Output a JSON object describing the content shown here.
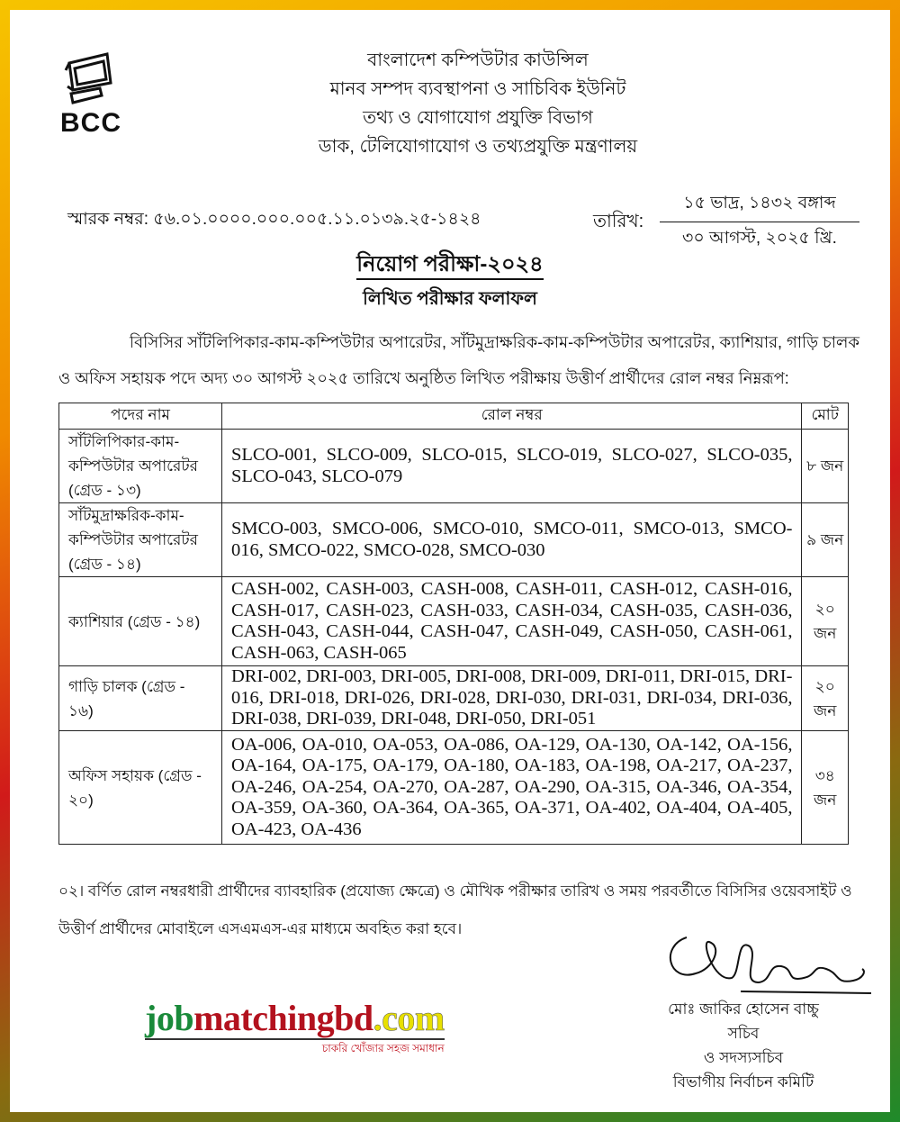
{
  "colors": {
    "frame_top": "#f08a00",
    "frame_bottom": "#1f8a2a",
    "watermark_green": "#1a8a3a",
    "watermark_red": "#b3121e",
    "watermark_yellow": "#e8e000"
  },
  "logo": {
    "text": "BCC",
    "icon": "computer-monitor-icon"
  },
  "header": {
    "lines": [
      "বাংলাদেশ কম্পিউটার কাউন্সিল",
      "মানব সম্পদ ব্যবস্থাপনা ও সাচিবিক ইউনিট",
      "তথ্য ও যোগাযোগ প্রযুক্তি বিভাগ",
      "ডাক, টেলিযোগাযোগ ও তথ্যপ্রযুক্তি মন্ত্রণালয়"
    ]
  },
  "memo": "স্মারক নম্বর: ৫৬.০১.০০০০.০০০.০০৫.১১.০১৩৯.২৫-১৪২৪",
  "date": {
    "label": "তারিখ:",
    "bangla": "১৫ ভাদ্র, ১৪৩২ বঙ্গাব্দ",
    "gregorian": "৩০ আগস্ট, ২০২৫ খ্রি."
  },
  "title": {
    "main": "নিয়োগ পরীক্ষা-২০২৪",
    "sub": "লিখিত পরীক্ষার ফলাফল"
  },
  "intro": {
    "line1": "বিসিসির সাঁটলিপিকার-কাম-কম্পিউটার অপারেটর, সাঁটমুদ্রাক্ষরিক-কাম-কম্পিউটার অপারেটর, ক্যাশিয়ার, গাড়ি চালক",
    "line2": "ও অফিস সহায়ক পদে অদ্য ৩০ আগস্ট ২০২৫ তারিখে অনুষ্ঠিত লিখিত পরীক্ষায় উত্তীর্ণ প্রার্থীদের রোল নম্বর নিম্নরূপ:"
  },
  "table": {
    "headers": [
      "পদের নাম",
      "রোল নম্বর",
      "মোট"
    ],
    "rows": [
      {
        "post": "সাঁটলিপিকার-কাম-কম্পিউটার অপারেটর (গ্রেড - ১৩)",
        "rolls": "SLCO-001, SLCO-009, SLCO-015, SLCO-019, SLCO-027, SLCO-035, SLCO-043, SLCO-079",
        "total": "৮ জন"
      },
      {
        "post": "সাঁটমুদ্রাক্ষরিক-কাম-কম্পিউটার অপারেটর (গ্রেড - ১৪)",
        "rolls": "SMCO-003, SMCO-006, SMCO-010, SMCO-011, SMCO-013, SMCO-016, SMCO-022, SMCO-028, SMCO-030",
        "total": "৯ জন"
      },
      {
        "post": "ক্যাশিয়ার (গ্রেড - ১৪)",
        "rolls": "CASH-002, CASH-003, CASH-008, CASH-011, CASH-012, CASH-016, CASH-017, CASH-023, CASH-033, CASH-034, CASH-035, CASH-036, CASH-043, CASH-044, CASH-047, CASH-049, CASH-050, CASH-061, CASH-063, CASH-065",
        "total": "২০ জন"
      },
      {
        "post": "গাড়ি চালক (গ্রেড - ১৬)",
        "rolls": "DRI-002, DRI-003, DRI-005, DRI-008, DRI-009, DRI-011, DRI-015, DRI-016, DRI-018, DRI-026, DRI-028, DRI-030, DRI-031, DRI-034, DRI-036, DRI-038, DRI-039, DRI-048, DRI-050, DRI-051",
        "total": "২০ জন"
      },
      {
        "post": "অফিস সহায়ক (গ্রেড - ২০)",
        "rolls": "OA-006, OA-010, OA-053, OA-086, OA-129, OA-130, OA-142, OA-156, OA-164, OA-175, OA-179, OA-180, OA-183, OA-198, OA-217, OA-237, OA-246, OA-254, OA-270, OA-287, OA-290, OA-315, OA-346, OA-354, OA-359, OA-360, OA-364, OA-365, OA-371, OA-402, OA-404, OA-405, OA-423, OA-436",
        "total": "৩৪ জন"
      }
    ]
  },
  "note": "০২। বর্ণিত রোল নম্বরধারী প্রার্থীদের ব্যাবহারিক (প্রযোজ্য ক্ষেত্রে)  ও মৌখিক পরীক্ষার তারিখ ও সময় পরবর্তীতে বিসিসির ওয়েবসাইট ও উত্তীর্ণ প্রার্থীদের মোবাইলে এসএমএস-এর মাধ্যমে অবহিত করা হবে।",
  "signatory": {
    "name": "মোঃ জাকির হোসেন বাচ্চু",
    "title": "সচিব",
    "role": "ও সদস্যসচিব",
    "committee": "বিভাগীয় নির্বাচন কমিটি"
  },
  "watermark": {
    "part1": "job",
    "part2": "matchingbd",
    "part3": ".com",
    "tagline": "চাকরি খোঁজার সহজ সমাধান"
  }
}
